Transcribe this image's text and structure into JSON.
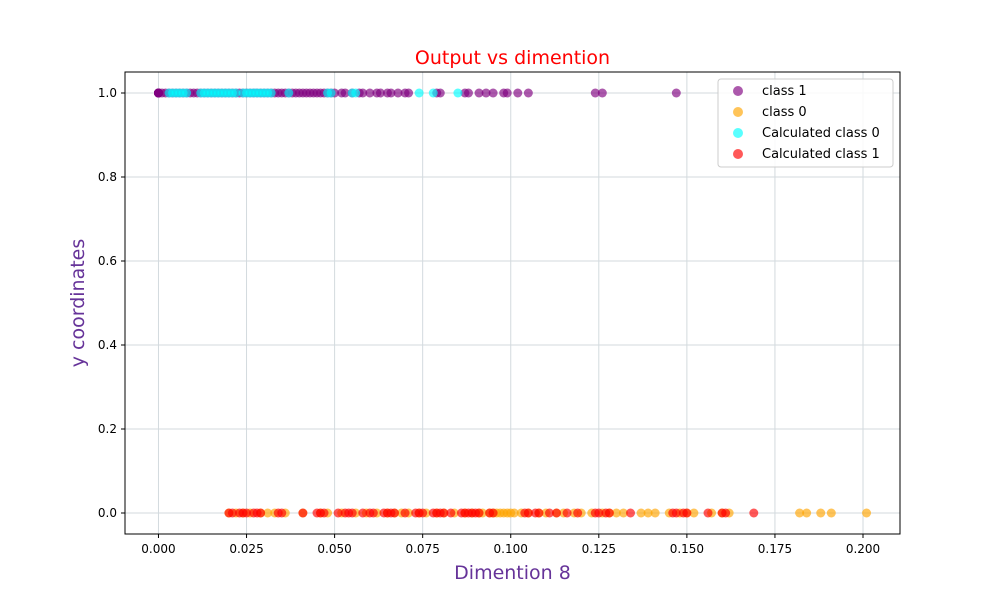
{
  "chart_data": {
    "type": "scatter",
    "title": "Output vs dimention",
    "xlabel": "Dimention 8",
    "ylabel": "y coordinates",
    "xlim": [
      -0.0095,
      0.2105
    ],
    "ylim": [
      -0.05,
      1.05
    ],
    "x_ticks": [
      "0.000",
      "0.025",
      "0.050",
      "0.075",
      "0.100",
      "0.125",
      "0.150",
      "0.175",
      "0.200"
    ],
    "y_ticks": [
      "0.0",
      "0.2",
      "0.4",
      "0.6",
      "0.8",
      "1.0"
    ],
    "grid": true,
    "legend_position": "top-right",
    "colors": {
      "title": "#ff0000",
      "axis_label": "#663399",
      "grid": "#d3dade"
    },
    "series": [
      {
        "name": "class 1",
        "color": "#800080",
        "y": 1,
        "x": [
          0.0,
          0.0,
          0.0,
          0.0,
          0.0,
          0.0,
          0.0,
          0.0,
          0.001,
          0.002,
          0.003,
          0.004,
          0.005,
          0.006,
          0.007,
          0.008,
          0.009,
          0.01,
          0.011,
          0.012,
          0.013,
          0.014,
          0.015,
          0.016,
          0.017,
          0.018,
          0.019,
          0.02,
          0.021,
          0.022,
          0.023,
          0.024,
          0.025,
          0.026,
          0.027,
          0.028,
          0.029,
          0.03,
          0.031,
          0.032,
          0.033,
          0.034,
          0.035,
          0.036,
          0.037,
          0.038,
          0.039,
          0.04,
          0.041,
          0.042,
          0.043,
          0.044,
          0.045,
          0.046,
          0.047,
          0.048,
          0.049,
          0.05,
          0.052,
          0.053,
          0.055,
          0.057,
          0.058,
          0.06,
          0.062,
          0.063,
          0.065,
          0.066,
          0.068,
          0.07,
          0.071,
          0.079,
          0.08,
          0.087,
          0.088,
          0.091,
          0.093,
          0.095,
          0.098,
          0.099,
          0.102,
          0.105,
          0.124,
          0.126,
          0.147
        ]
      },
      {
        "name": "class 0",
        "color": "#ffa500",
        "y": 0,
        "x": [
          0.02,
          0.022,
          0.024,
          0.026,
          0.029,
          0.031,
          0.033,
          0.036,
          0.041,
          0.046,
          0.048,
          0.052,
          0.056,
          0.059,
          0.062,
          0.065,
          0.067,
          0.069,
          0.071,
          0.074,
          0.076,
          0.079,
          0.081,
          0.084,
          0.087,
          0.089,
          0.091,
          0.092,
          0.094,
          0.095,
          0.096,
          0.097,
          0.098,
          0.099,
          0.1,
          0.101,
          0.103,
          0.105,
          0.108,
          0.11,
          0.113,
          0.115,
          0.118,
          0.12,
          0.123,
          0.126,
          0.128,
          0.13,
          0.132,
          0.137,
          0.139,
          0.141,
          0.145,
          0.148,
          0.15,
          0.152,
          0.157,
          0.16,
          0.162,
          0.182,
          0.184,
          0.188,
          0.191,
          0.201
        ]
      },
      {
        "name": "Calculated class 0",
        "color": "#00ffff",
        "y": 1,
        "x": [
          0.003,
          0.004,
          0.005,
          0.006,
          0.007,
          0.008,
          0.012,
          0.013,
          0.014,
          0.015,
          0.016,
          0.017,
          0.018,
          0.019,
          0.02,
          0.021,
          0.022,
          0.024,
          0.025,
          0.026,
          0.027,
          0.028,
          0.029,
          0.03,
          0.031,
          0.032,
          0.037,
          0.048,
          0.049,
          0.055,
          0.056,
          0.074,
          0.078,
          0.085
        ]
      },
      {
        "name": "Calculated class 1",
        "color": "#ff0000",
        "y": 0,
        "x": [
          0.02,
          0.021,
          0.023,
          0.024,
          0.025,
          0.027,
          0.028,
          0.029,
          0.034,
          0.035,
          0.041,
          0.045,
          0.046,
          0.047,
          0.051,
          0.053,
          0.054,
          0.055,
          0.058,
          0.06,
          0.061,
          0.064,
          0.065,
          0.066,
          0.067,
          0.07,
          0.073,
          0.074,
          0.075,
          0.078,
          0.079,
          0.08,
          0.081,
          0.083,
          0.086,
          0.087,
          0.088,
          0.089,
          0.09,
          0.091,
          0.094,
          0.095,
          0.104,
          0.105,
          0.107,
          0.108,
          0.111,
          0.113,
          0.116,
          0.119,
          0.124,
          0.125,
          0.127,
          0.128,
          0.134,
          0.146,
          0.147,
          0.149,
          0.15,
          0.156,
          0.16,
          0.161,
          0.169
        ]
      }
    ]
  }
}
